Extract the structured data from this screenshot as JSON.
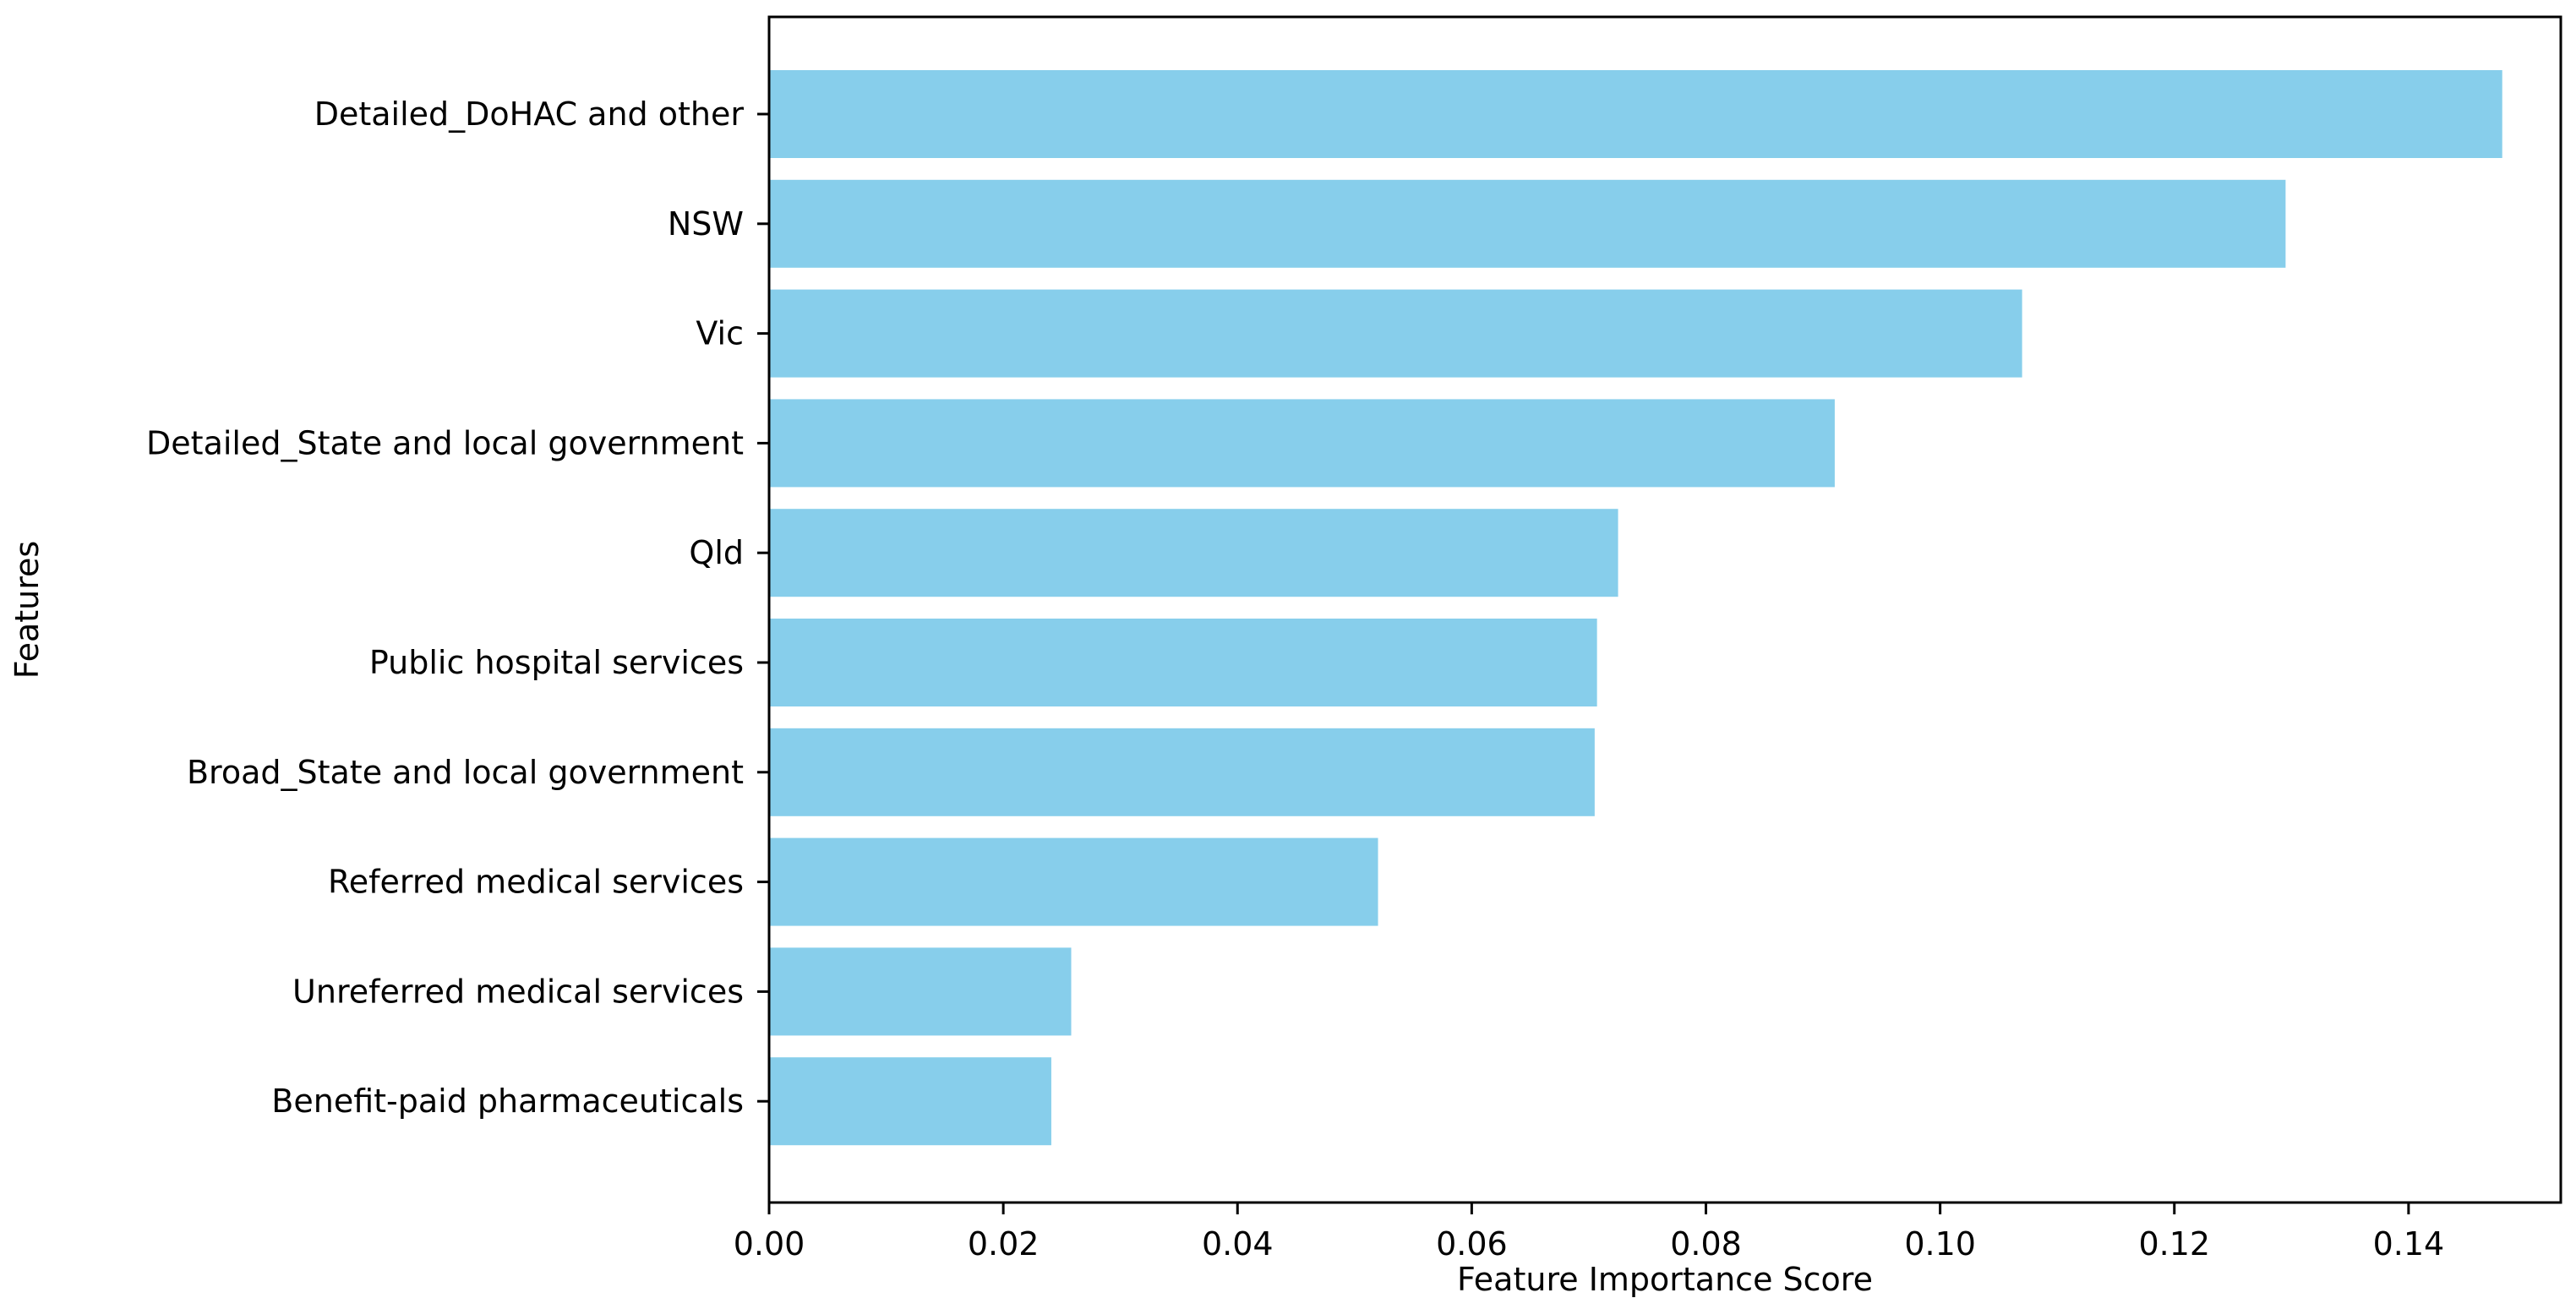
{
  "chart_data": {
    "type": "bar",
    "orientation": "horizontal",
    "xlabel": "Feature Importance Score",
    "ylabel": "Features",
    "xlim": [
      0,
      0.153
    ],
    "x_ticks": [
      0.0,
      0.02,
      0.04,
      0.06,
      0.08,
      0.1,
      0.12,
      0.14
    ],
    "x_tick_labels": [
      "0.00",
      "0.02",
      "0.04",
      "0.06",
      "0.08",
      "0.10",
      "0.12",
      "0.14"
    ],
    "categories": [
      "Detailed_DoHAC and other",
      "NSW",
      "Vic",
      "Detailed_State and local government",
      "Qld",
      "Public hospital services",
      "Broad_State and local government",
      "Referred medical services",
      "Unreferred medical services",
      "Benefit-paid pharmaceuticals"
    ],
    "values": [
      0.148,
      0.1295,
      0.107,
      0.091,
      0.0725,
      0.0707,
      0.0705,
      0.052,
      0.0258,
      0.0241
    ],
    "grid": false,
    "legend": "none",
    "colors": {
      "bar": "#87ceeb",
      "axis": "#000000",
      "text": "#000000"
    }
  }
}
